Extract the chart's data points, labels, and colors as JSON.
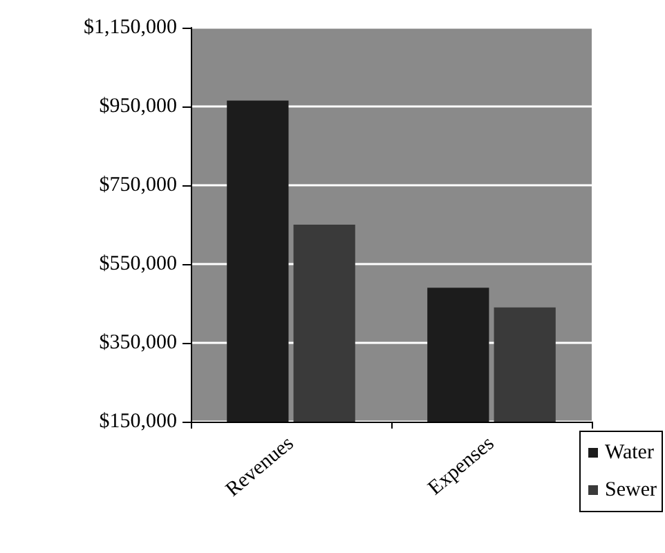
{
  "chart_data": {
    "type": "bar",
    "categories": [
      "Revenues",
      "Expenses"
    ],
    "series": [
      {
        "name": "Water",
        "color": "#1c1c1c",
        "values": [
          965000,
          490000
        ]
      },
      {
        "name": "Sewer",
        "color": "#3a3a3a",
        "values": [
          650000,
          440000
        ]
      }
    ],
    "ylim": [
      150000,
      1150000
    ],
    "yticks": [
      {
        "value": 150000,
        "label": "$150,000"
      },
      {
        "value": 350000,
        "label": "$350,000"
      },
      {
        "value": 550000,
        "label": "$550,000"
      },
      {
        "value": 750000,
        "label": "$750,000"
      },
      {
        "value": 950000,
        "label": "$950,000"
      },
      {
        "value": 1150000,
        "label": "$1,150,000"
      }
    ],
    "grid": "y",
    "legend": "bottom right"
  }
}
